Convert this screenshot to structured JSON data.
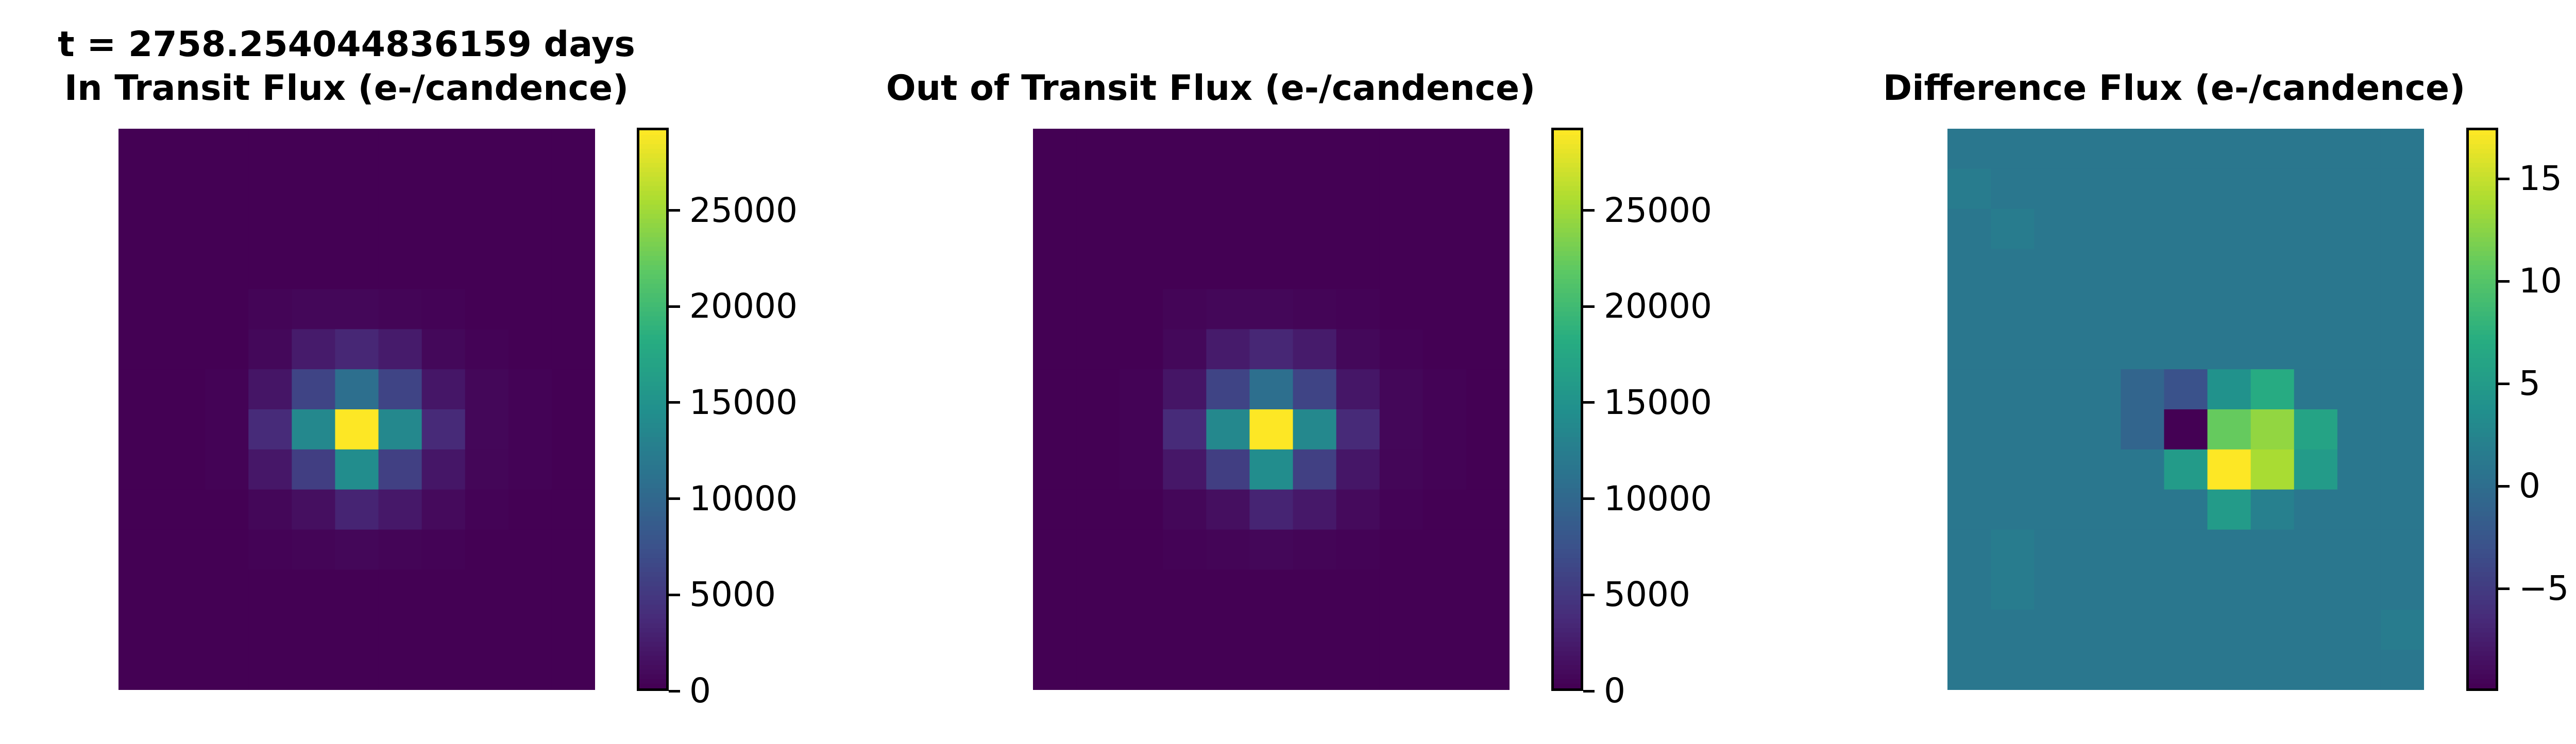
{
  "chart_data": [
    {
      "type": "heatmap",
      "time_label": "t = 2758.254044836159 days",
      "title": "In Transit Flux (e-/candence)",
      "colormap": "viridis",
      "colorbar": {
        "range": [
          0,
          29300
        ],
        "ticks": [
          0,
          5000,
          10000,
          15000,
          20000,
          25000
        ],
        "tick_labels": [
          "0",
          "5000",
          "10000",
          "15000",
          "20000",
          "25000"
        ]
      },
      "grid": [
        [
          40,
          40,
          40,
          40,
          40,
          40,
          40,
          40,
          40,
          40,
          40
        ],
        [
          40,
          40,
          40,
          40,
          40,
          40,
          40,
          40,
          40,
          40,
          40
        ],
        [
          40,
          40,
          40,
          40,
          40,
          40,
          40,
          40,
          40,
          40,
          40
        ],
        [
          40,
          40,
          40,
          40,
          40,
          40,
          40,
          40,
          40,
          40,
          40
        ],
        [
          40,
          40,
          40,
          300,
          500,
          500,
          300,
          150,
          40,
          40,
          40
        ],
        [
          40,
          40,
          40,
          600,
          2200,
          3200,
          2200,
          600,
          150,
          40,
          40
        ],
        [
          40,
          40,
          150,
          1700,
          6000,
          10800,
          6000,
          1800,
          500,
          150,
          40
        ],
        [
          40,
          40,
          150,
          3600,
          13700,
          29300,
          13700,
          3500,
          500,
          150,
          40
        ],
        [
          40,
          40,
          150,
          1900,
          5400,
          14300,
          5600,
          1800,
          400,
          150,
          40
        ],
        [
          40,
          40,
          40,
          500,
          1200,
          3000,
          2000,
          800,
          150,
          40,
          40
        ],
        [
          40,
          40,
          40,
          150,
          300,
          500,
          300,
          150,
          40,
          40,
          40
        ],
        [
          40,
          40,
          40,
          40,
          40,
          40,
          40,
          40,
          40,
          40,
          40
        ],
        [
          40,
          40,
          40,
          40,
          40,
          40,
          40,
          40,
          40,
          40,
          40
        ],
        [
          40,
          40,
          40,
          40,
          40,
          40,
          40,
          40,
          40,
          40,
          40
        ]
      ]
    },
    {
      "type": "heatmap",
      "title": "Out of Transit Flux (e-/candence)",
      "colormap": "viridis",
      "colorbar": {
        "range": [
          0,
          29300
        ],
        "ticks": [
          0,
          5000,
          10000,
          15000,
          20000,
          25000
        ],
        "tick_labels": [
          "0",
          "5000",
          "10000",
          "15000",
          "20000",
          "25000"
        ]
      },
      "grid": [
        [
          40,
          40,
          40,
          40,
          40,
          40,
          40,
          40,
          40,
          40,
          40
        ],
        [
          40,
          40,
          40,
          40,
          40,
          40,
          40,
          40,
          40,
          40,
          40
        ],
        [
          40,
          40,
          40,
          40,
          40,
          40,
          40,
          40,
          40,
          40,
          40
        ],
        [
          40,
          40,
          40,
          40,
          40,
          40,
          40,
          40,
          40,
          40,
          40
        ],
        [
          40,
          40,
          40,
          300,
          500,
          500,
          300,
          150,
          40,
          40,
          40
        ],
        [
          40,
          40,
          40,
          600,
          2200,
          3200,
          2200,
          600,
          150,
          40,
          40
        ],
        [
          40,
          40,
          150,
          1700,
          6000,
          10800,
          6000,
          1800,
          500,
          150,
          40
        ],
        [
          40,
          40,
          150,
          3600,
          13700,
          29300,
          13700,
          3500,
          500,
          150,
          40
        ],
        [
          40,
          40,
          150,
          1900,
          5400,
          14300,
          5600,
          1800,
          400,
          150,
          40
        ],
        [
          40,
          40,
          40,
          500,
          1200,
          3000,
          2000,
          800,
          150,
          40,
          40
        ],
        [
          40,
          40,
          40,
          150,
          300,
          500,
          300,
          150,
          40,
          40,
          40
        ],
        [
          40,
          40,
          40,
          40,
          40,
          40,
          40,
          40,
          40,
          40,
          40
        ],
        [
          40,
          40,
          40,
          40,
          40,
          40,
          40,
          40,
          40,
          40,
          40
        ],
        [
          40,
          40,
          40,
          40,
          40,
          40,
          40,
          40,
          40,
          40,
          40
        ]
      ]
    },
    {
      "type": "heatmap",
      "title": "Difference Flux (e-/candence)",
      "colormap": "viridis",
      "colorbar": {
        "range": [
          -10,
          17.5
        ],
        "ticks": [
          -5,
          0,
          5,
          10,
          15
        ],
        "tick_labels": [
          "−5",
          "0",
          "5",
          "10",
          "15"
        ]
      },
      "grid": [
        [
          1,
          1,
          1,
          1,
          1,
          1,
          1,
          1,
          1,
          1,
          1
        ],
        [
          1.5,
          1,
          1,
          1,
          1,
          1,
          1,
          1,
          1,
          1,
          1
        ],
        [
          1,
          1.5,
          1,
          1,
          1,
          1,
          1,
          1,
          1,
          1,
          1
        ],
        [
          1,
          1,
          1,
          1,
          1,
          1,
          1,
          1,
          1,
          1,
          1
        ],
        [
          1,
          1,
          1,
          1,
          1,
          1,
          1,
          1,
          1,
          1,
          1
        ],
        [
          1,
          1,
          1,
          1,
          1,
          1,
          1,
          1,
          1,
          1,
          1
        ],
        [
          1,
          1,
          1,
          1,
          -1,
          -3,
          4,
          7,
          1,
          1,
          1
        ],
        [
          1,
          1,
          1,
          1,
          -1,
          -10,
          11,
          13,
          6,
          1,
          1
        ],
        [
          1,
          1,
          1,
          1,
          1,
          5,
          17.5,
          14,
          5,
          1,
          1
        ],
        [
          1,
          1,
          1,
          1,
          1,
          1,
          5,
          2,
          1,
          1,
          1
        ],
        [
          1,
          1.5,
          1,
          1,
          1,
          1,
          1,
          1,
          1,
          1,
          1
        ],
        [
          1,
          1.5,
          1,
          1,
          1,
          1,
          1,
          1,
          1,
          1,
          1
        ],
        [
          1,
          1,
          1,
          1,
          1,
          1,
          1,
          1,
          1,
          1,
          1.5
        ],
        [
          1,
          1,
          1,
          1,
          1,
          1,
          1,
          1,
          1,
          1,
          1
        ]
      ]
    }
  ]
}
